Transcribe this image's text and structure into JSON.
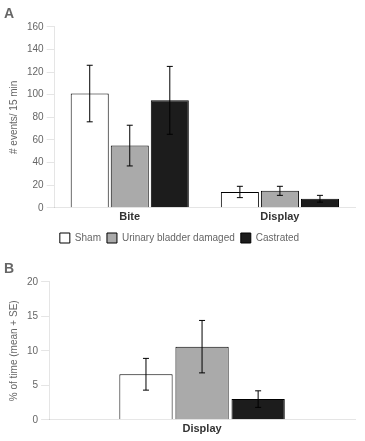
{
  "chart_data": [
    {
      "type": "bar",
      "title": "A",
      "categories": [
        "Bite",
        "Display"
      ],
      "series": [
        {
          "name": "Sham",
          "color": "white",
          "values": [
            101,
            14
          ],
          "errors": [
            25,
            5
          ]
        },
        {
          "name": "Urinary bladder damaged",
          "color": "#aaaaaa",
          "values": [
            55,
            15
          ],
          "errors": [
            18,
            4
          ]
        },
        {
          "name": "Castrated",
          "color": "#1c1c1c",
          "values": [
            95,
            8
          ],
          "errors": [
            30,
            3
          ]
        }
      ],
      "ylabel": "# events/ 15 min",
      "ylim": [
        0,
        160
      ],
      "yticks": [
        0,
        20,
        40,
        60,
        80,
        100,
        120,
        140,
        160
      ],
      "grid": false,
      "legend": "bottom"
    },
    {
      "type": "bar",
      "title": "B",
      "categories": [
        "Display"
      ],
      "series": [
        {
          "name": "Sham",
          "color": "white",
          "values": [
            6.6
          ],
          "errors": [
            2.3
          ]
        },
        {
          "name": "Urinary bladder damaged",
          "color": "#aaaaaa",
          "values": [
            10.6
          ],
          "errors": [
            3.8
          ]
        },
        {
          "name": "Castrated",
          "color": "#1c1c1c",
          "values": [
            3.0
          ],
          "errors": [
            1.2
          ]
        }
      ],
      "ylabel": "% of time (mean + SE)",
      "ylim": [
        0,
        20
      ],
      "yticks": [
        0,
        5,
        10,
        15,
        20
      ],
      "grid": false,
      "legend": false
    }
  ]
}
